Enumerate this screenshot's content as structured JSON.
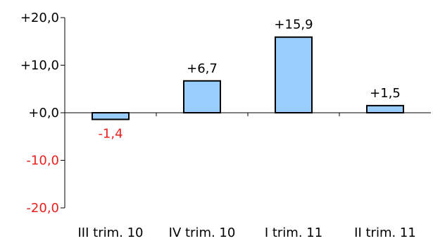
{
  "chart_data": {
    "type": "bar",
    "categories": [
      "III trim. 10",
      "IV trim. 10",
      "I trim. 11",
      "II trim. 11"
    ],
    "values": [
      -1.4,
      6.7,
      15.9,
      1.5
    ],
    "data_labels": [
      "-1,4",
      "+6,7",
      "+15,9",
      "+1,5"
    ],
    "ylim": [
      -20,
      20
    ],
    "yticks": [
      20,
      10,
      0,
      -10,
      -20
    ],
    "ytick_labels": [
      "+20,0",
      "+10,0",
      "+0,0",
      "-10,0",
      "-20,0"
    ],
    "title": "",
    "xlabel": "",
    "ylabel": "",
    "grid": false,
    "legend": false,
    "colors": {
      "bar_fill": "#99CCFF",
      "bar_stroke": "#000000",
      "positive_text": "#000000",
      "negative_text": "#E8201E",
      "axis": "#000000"
    }
  }
}
